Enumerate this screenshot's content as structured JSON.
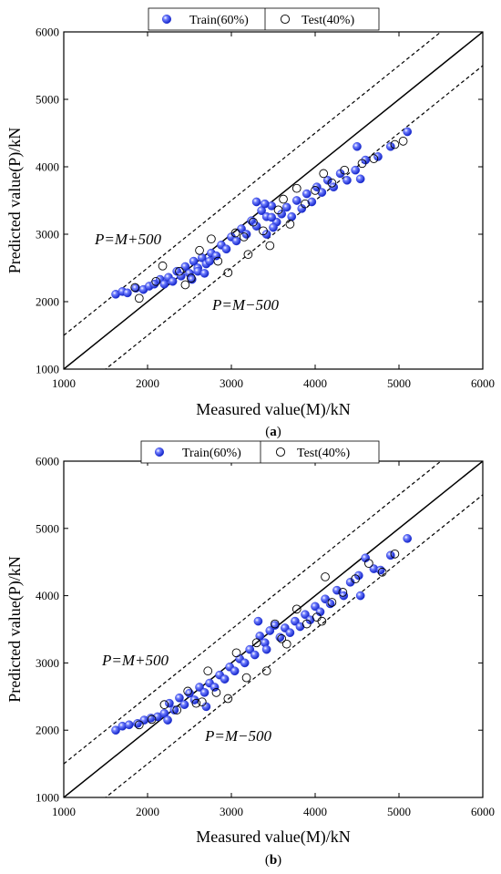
{
  "chart_data": [
    {
      "panel": "(a)",
      "panel_bold": "a",
      "type": "scatter",
      "xlabel": "Measured value(M)/kN",
      "ylabel": "Predicted value(P)/kN",
      "xlim": [
        1000,
        6000
      ],
      "ylim": [
        1000,
        6000
      ],
      "xticks": [
        1000,
        2000,
        3000,
        4000,
        5000,
        6000
      ],
      "yticks": [
        1000,
        2000,
        3000,
        4000,
        5000,
        6000
      ],
      "grid": false,
      "legend": {
        "position": "top",
        "entries": [
          "Train(60%)",
          "Test(40%)"
        ]
      },
      "reference_lines": [
        {
          "label": "",
          "slope": 1,
          "offset": 0,
          "style": "solid"
        },
        {
          "label": "P=M+500",
          "slope": 1,
          "offset": 500,
          "style": "dashed"
        },
        {
          "label": "P=M−500",
          "slope": 1,
          "offset": -500,
          "style": "dashed"
        }
      ],
      "series": [
        {
          "name": "Train(60%)",
          "marker": "filled-sphere",
          "color": "#2b3de8",
          "points": [
            [
              1620,
              2110
            ],
            [
              1700,
              2150
            ],
            [
              1760,
              2130
            ],
            [
              1860,
              2200
            ],
            [
              1950,
              2180
            ],
            [
              2020,
              2230
            ],
            [
              2080,
              2260
            ],
            [
              2150,
              2330
            ],
            [
              2200,
              2260
            ],
            [
              2250,
              2360
            ],
            [
              2300,
              2300
            ],
            [
              2350,
              2450
            ],
            [
              2400,
              2380
            ],
            [
              2450,
              2520
            ],
            [
              2500,
              2420
            ],
            [
              2550,
              2600
            ],
            [
              2600,
              2500
            ],
            [
              2650,
              2650
            ],
            [
              2700,
              2560
            ],
            [
              2760,
              2720
            ],
            [
              2820,
              2680
            ],
            [
              2880,
              2840
            ],
            [
              2940,
              2780
            ],
            [
              3000,
              2960
            ],
            [
              3060,
              2900
            ],
            [
              3120,
              3080
            ],
            [
              3180,
              3000
            ],
            [
              3240,
              3200
            ],
            [
              3300,
              3120
            ],
            [
              3360,
              3350
            ],
            [
              3420,
              3260
            ],
            [
              3480,
              3420
            ],
            [
              3540,
              3180
            ],
            [
              3600,
              3300
            ],
            [
              3660,
              3400
            ],
            [
              3720,
              3260
            ],
            [
              3780,
              3500
            ],
            [
              3840,
              3380
            ],
            [
              3900,
              3600
            ],
            [
              3960,
              3480
            ],
            [
              4020,
              3700
            ],
            [
              4080,
              3620
            ],
            [
              4150,
              3800
            ],
            [
              4220,
              3700
            ],
            [
              4300,
              3900
            ],
            [
              4380,
              3800
            ],
            [
              4480,
              3950
            ],
            [
              4600,
              4100
            ],
            [
              4750,
              4150
            ],
            [
              4900,
              4300
            ],
            [
              5100,
              4520
            ],
            [
              2530,
              2330
            ],
            [
              2600,
              2450
            ],
            [
              2680,
              2420
            ],
            [
              2740,
              2600
            ],
            [
              3420,
              3000
            ],
            [
              3500,
              3100
            ],
            [
              4540,
              3820
            ],
            [
              4500,
              4300
            ],
            [
              3300,
              3480
            ],
            [
              3400,
              3450
            ],
            [
              3480,
              3250
            ]
          ]
        },
        {
          "name": "Test(40%)",
          "marker": "open-circle",
          "color": "#000000",
          "points": [
            [
              1850,
              2210
            ],
            [
              1900,
              2050
            ],
            [
              2100,
              2300
            ],
            [
              2180,
              2530
            ],
            [
              2380,
              2450
            ],
            [
              2520,
              2350
            ],
            [
              2620,
              2760
            ],
            [
              2760,
              2930
            ],
            [
              2840,
              2600
            ],
            [
              2960,
              2430
            ],
            [
              3050,
              3020
            ],
            [
              3150,
              2960
            ],
            [
              3260,
              3180
            ],
            [
              3380,
              3050
            ],
            [
              3460,
              2830
            ],
            [
              3560,
              3360
            ],
            [
              3700,
              3150
            ],
            [
              3780,
              3680
            ],
            [
              3880,
              3450
            ],
            [
              4000,
              3650
            ],
            [
              4100,
              3900
            ],
            [
              4200,
              3760
            ],
            [
              4350,
              3950
            ],
            [
              4560,
              4050
            ],
            [
              4700,
              4120
            ],
            [
              4950,
              4330
            ],
            [
              5050,
              4380
            ],
            [
              3200,
              2700
            ],
            [
              3620,
              3520
            ],
            [
              2450,
              2250
            ]
          ]
        }
      ]
    },
    {
      "panel": "(b)",
      "panel_bold": "b",
      "type": "scatter",
      "xlabel": "Measured value(M)/kN",
      "ylabel": "Predicted value(P)/kN",
      "xlim": [
        1000,
        6000
      ],
      "ylim": [
        1000,
        6000
      ],
      "xticks": [
        1000,
        2000,
        3000,
        4000,
        5000,
        6000
      ],
      "yticks": [
        1000,
        2000,
        3000,
        4000,
        5000,
        6000
      ],
      "grid": false,
      "legend": {
        "position": "top",
        "entries": [
          "Train(60%)",
          "Test(40%)"
        ]
      },
      "reference_lines": [
        {
          "label": "",
          "slope": 1,
          "offset": 0,
          "style": "solid"
        },
        {
          "label": "P=M+500",
          "slope": 1,
          "offset": 500,
          "style": "dashed"
        },
        {
          "label": "P=M−500",
          "slope": 1,
          "offset": -500,
          "style": "dashed"
        }
      ],
      "series": [
        {
          "name": "Train(60%)",
          "marker": "filled-sphere",
          "color": "#2b3de8",
          "points": [
            [
              1620,
              2000
            ],
            [
              1700,
              2060
            ],
            [
              1780,
              2080
            ],
            [
              1880,
              2100
            ],
            [
              1960,
              2150
            ],
            [
              2040,
              2180
            ],
            [
              2120,
              2200
            ],
            [
              2200,
              2250
            ],
            [
              2260,
              2400
            ],
            [
              2320,
              2300
            ],
            [
              2380,
              2480
            ],
            [
              2440,
              2380
            ],
            [
              2500,
              2550
            ],
            [
              2560,
              2450
            ],
            [
              2620,
              2640
            ],
            [
              2680,
              2560
            ],
            [
              2740,
              2700
            ],
            [
              2800,
              2640
            ],
            [
              2860,
              2820
            ],
            [
              2920,
              2760
            ],
            [
              2980,
              2940
            ],
            [
              3040,
              2880
            ],
            [
              3100,
              3060
            ],
            [
              3160,
              3000
            ],
            [
              3220,
              3200
            ],
            [
              3280,
              3120
            ],
            [
              3340,
              3400
            ],
            [
              3400,
              3300
            ],
            [
              3460,
              3480
            ],
            [
              3520,
              3560
            ],
            [
              3580,
              3380
            ],
            [
              3640,
              3520
            ],
            [
              3700,
              3450
            ],
            [
              3760,
              3620
            ],
            [
              3820,
              3540
            ],
            [
              3880,
              3720
            ],
            [
              3940,
              3640
            ],
            [
              4000,
              3840
            ],
            [
              4060,
              3760
            ],
            [
              4120,
              3950
            ],
            [
              4180,
              3880
            ],
            [
              4260,
              4080
            ],
            [
              4340,
              4000
            ],
            [
              4420,
              4200
            ],
            [
              4520,
              4300
            ],
            [
              4600,
              4560
            ],
            [
              4700,
              4400
            ],
            [
              4780,
              4380
            ],
            [
              4900,
              4600
            ],
            [
              5100,
              4850
            ],
            [
              3320,
              3620
            ],
            [
              3420,
              3200
            ],
            [
              4540,
              4000
            ],
            [
              2240,
              2150
            ],
            [
              2700,
              2350
            ]
          ]
        },
        {
          "name": "Test(40%)",
          "marker": "open-circle",
          "color": "#000000",
          "points": [
            [
              1900,
              2080
            ],
            [
              2050,
              2160
            ],
            [
              2200,
              2380
            ],
            [
              2350,
              2300
            ],
            [
              2480,
              2580
            ],
            [
              2580,
              2400
            ],
            [
              2720,
              2880
            ],
            [
              2820,
              2560
            ],
            [
              2960,
              2470
            ],
            [
              3060,
              3150
            ],
            [
              3180,
              2780
            ],
            [
              3300,
              3300
            ],
            [
              3420,
              2880
            ],
            [
              3520,
              3580
            ],
            [
              3660,
              3280
            ],
            [
              3780,
              3800
            ],
            [
              3900,
              3580
            ],
            [
              4020,
              3680
            ],
            [
              4120,
              4280
            ],
            [
              4200,
              3900
            ],
            [
              4330,
              4050
            ],
            [
              4480,
              4250
            ],
            [
              4640,
              4480
            ],
            [
              4800,
              4350
            ],
            [
              4950,
              4620
            ],
            [
              2650,
              2420
            ],
            [
              3600,
              3360
            ],
            [
              4080,
              3620
            ]
          ]
        }
      ]
    }
  ]
}
